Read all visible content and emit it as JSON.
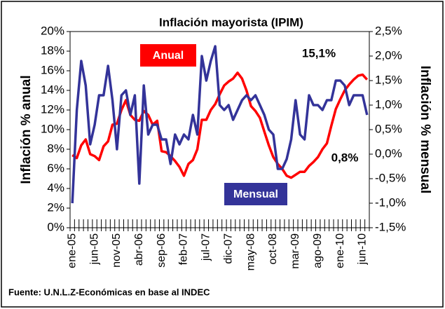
{
  "chart_data": {
    "type": "line",
    "title": "Inflación mayorista (IPIM)",
    "y_label": "Inflación % anual",
    "y2_label": "Inflación % mensual",
    "source": "Fuente: U.N.L.Z-Económicas en base al INDEC",
    "annotations": [
      "15,1%",
      "0,8%"
    ],
    "categories": [
      "ene-05",
      null,
      null,
      null,
      null,
      "jun-05",
      null,
      null,
      null,
      null,
      "nov-05",
      null,
      null,
      null,
      null,
      "abr-06",
      null,
      null,
      null,
      null,
      "sep-06",
      null,
      null,
      null,
      null,
      "feb-07",
      null,
      null,
      null,
      null,
      "jul-07",
      null,
      null,
      null,
      null,
      "dic-07",
      null,
      null,
      null,
      null,
      "may-08",
      null,
      null,
      null,
      null,
      "oct-08",
      null,
      null,
      null,
      null,
      "mar-09",
      null,
      null,
      null,
      null,
      "ago-09",
      null,
      null,
      null,
      null,
      "ene-10",
      null,
      null,
      null,
      null,
      "jun-10",
      null
    ],
    "series": [
      {
        "name": "Anual",
        "color": "#ff0000",
        "axis": "y",
        "values": [
          7.4,
          7.1,
          8.4,
          9.0,
          7.5,
          7.3,
          6.9,
          8.3,
          8.8,
          10.5,
          10.6,
          12.0,
          13.0,
          11.5,
          11.0,
          10.9,
          11.9,
          11.5,
          10.5,
          10.9,
          7.8,
          7.7,
          7.3,
          6.8,
          6.2,
          5.3,
          6.5,
          6.9,
          8.0,
          11.0,
          11.0,
          12.0,
          12.6,
          13.6,
          14.5,
          14.9,
          15.2,
          15.8,
          15.2,
          14.0,
          12.4,
          11.9,
          11.2,
          9.8,
          8.4,
          7.2,
          6.5,
          6.0,
          5.3,
          5.1,
          5.4,
          5.7,
          5.7,
          6.3,
          6.7,
          7.2,
          8.0,
          8.6,
          10.4,
          12.1,
          13.1,
          14.0,
          14.6,
          15.1,
          15.5,
          15.6,
          15.1
        ]
      },
      {
        "name": "Mensual",
        "color": "#333399",
        "axis": "y2",
        "values": [
          -1.0,
          0.9,
          1.9,
          1.4,
          0.2,
          0.6,
          1.2,
          1.2,
          1.8,
          1.1,
          0.1,
          1.2,
          1.3,
          0.8,
          1.2,
          -0.6,
          1.4,
          0.4,
          0.6,
          0.6,
          0.3,
          0.3,
          -0.2,
          0.4,
          0.2,
          0.4,
          0.3,
          0.8,
          0.4,
          2.0,
          1.5,
          1.9,
          2.2,
          1.0,
          0.9,
          1.0,
          0.7,
          0.9,
          1.1,
          1.2,
          1.1,
          1.2,
          1.0,
          0.8,
          0.5,
          0.4,
          -0.3,
          -0.3,
          -0.1,
          0.3,
          1.1,
          0.4,
          0.3,
          1.2,
          1.0,
          1.0,
          0.9,
          1.1,
          1.1,
          1.5,
          1.5,
          1.4,
          1.0,
          1.2,
          1.2,
          1.2,
          0.8
        ]
      }
    ],
    "ylim": [
      0,
      20
    ],
    "yticks": [
      {
        "value": 0,
        "label": "0%"
      },
      {
        "value": 2,
        "label": "2%"
      },
      {
        "value": 4,
        "label": "4%"
      },
      {
        "value": 6,
        "label": "6%"
      },
      {
        "value": 8,
        "label": "8%"
      },
      {
        "value": 10,
        "label": "10%"
      },
      {
        "value": 12,
        "label": "12%"
      },
      {
        "value": 14,
        "label": "14%"
      },
      {
        "value": 16,
        "label": "16%"
      },
      {
        "value": 18,
        "label": "18%"
      },
      {
        "value": 20,
        "label": "20%"
      }
    ],
    "y2lim": [
      -1.5,
      2.5
    ],
    "y2ticks": [
      {
        "value": -1.5,
        "label": "-1,5%"
      },
      {
        "value": -1.0,
        "label": "-1,0%"
      },
      {
        "value": -0.5,
        "label": "-0,5%"
      },
      {
        "value": 0,
        "label": "0,0%"
      },
      {
        "value": 0.5,
        "label": "0,5%"
      },
      {
        "value": 1.0,
        "label": "1,0%"
      },
      {
        "value": 1.5,
        "label": "1,5%"
      },
      {
        "value": 2.0,
        "label": "2,0%"
      },
      {
        "value": 2.5,
        "label": "2,5%"
      }
    ],
    "grid": false
  }
}
